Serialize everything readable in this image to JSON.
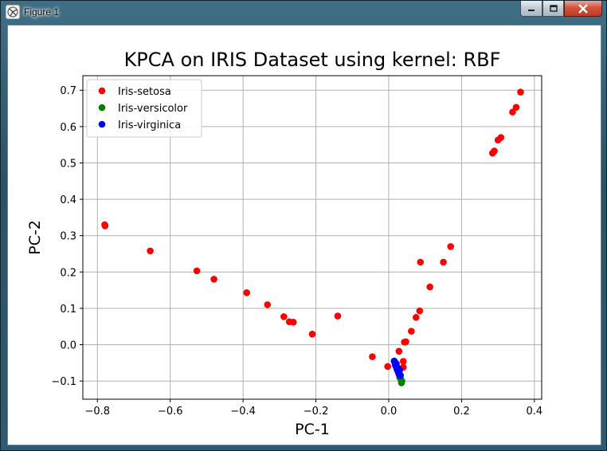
{
  "window": {
    "title": "Figure 1"
  },
  "chart_data": {
    "type": "scatter",
    "title": "KPCA on IRIS Dataset using kernel: RBF",
    "xlabel": "PC-1",
    "ylabel": "PC-2",
    "xlim": [
      -0.84,
      0.42
    ],
    "ylim": [
      -0.15,
      0.74
    ],
    "xticks": [
      -0.8,
      -0.6,
      -0.4,
      -0.2,
      0.0,
      0.2,
      0.4
    ],
    "xtick_labels": [
      "−0.8",
      "−0.6",
      "−0.4",
      "−0.2",
      "0.0",
      "0.2",
      "0.4"
    ],
    "yticks": [
      -0.1,
      0.0,
      0.1,
      0.2,
      0.3,
      0.4,
      0.5,
      0.6,
      0.7
    ],
    "ytick_labels": [
      "−0.1",
      "0.0",
      "0.1",
      "0.2",
      "0.3",
      "0.4",
      "0.5",
      "0.6",
      "0.7"
    ],
    "grid": true,
    "legend_position": "top-left",
    "series": [
      {
        "name": "Iris-setosa",
        "color": "#ff0000",
        "points": [
          [
            -0.78,
            0.33
          ],
          [
            -0.779,
            0.327
          ],
          [
            -0.655,
            0.258
          ],
          [
            -0.527,
            0.203
          ],
          [
            -0.48,
            0.18
          ],
          [
            -0.39,
            0.143
          ],
          [
            -0.333,
            0.11
          ],
          [
            -0.288,
            0.077
          ],
          [
            -0.273,
            0.063
          ],
          [
            -0.262,
            0.062
          ],
          [
            -0.21,
            0.029
          ],
          [
            -0.14,
            0.079
          ],
          [
            -0.045,
            -0.033
          ],
          [
            -0.003,
            -0.06
          ],
          [
            0.028,
            -0.018
          ],
          [
            0.04,
            -0.046
          ],
          [
            0.04,
            -0.062
          ],
          [
            0.043,
            0.007
          ],
          [
            0.047,
            0.008
          ],
          [
            0.062,
            0.037
          ],
          [
            0.075,
            0.075
          ],
          [
            0.085,
            0.093
          ],
          [
            0.087,
            0.227
          ],
          [
            0.113,
            0.159
          ],
          [
            0.15,
            0.227
          ],
          [
            0.17,
            0.27
          ],
          [
            0.285,
            0.527
          ],
          [
            0.29,
            0.533
          ],
          [
            0.3,
            0.563
          ],
          [
            0.308,
            0.57
          ],
          [
            0.34,
            0.64
          ],
          [
            0.35,
            0.653
          ],
          [
            0.362,
            0.695
          ]
        ]
      },
      {
        "name": "Iris-versicolor",
        "color": "#008000",
        "points": [
          [
            0.035,
            -0.105
          ],
          [
            0.032,
            -0.085
          ],
          [
            0.03,
            -0.09
          ],
          [
            0.028,
            -0.08
          ],
          [
            0.033,
            -0.095
          ],
          [
            0.036,
            -0.1
          ]
        ]
      },
      {
        "name": "Iris-virginica",
        "color": "#0000ff",
        "points": [
          [
            0.015,
            -0.045
          ],
          [
            0.017,
            -0.05
          ],
          [
            0.018,
            -0.055
          ],
          [
            0.02,
            -0.06
          ],
          [
            0.021,
            -0.052
          ],
          [
            0.022,
            -0.065
          ],
          [
            0.023,
            -0.068
          ],
          [
            0.024,
            -0.07
          ],
          [
            0.025,
            -0.072
          ],
          [
            0.026,
            -0.075
          ],
          [
            0.027,
            -0.077
          ],
          [
            0.028,
            -0.08
          ],
          [
            0.029,
            -0.082
          ],
          [
            0.03,
            -0.083
          ],
          [
            0.031,
            -0.085
          ],
          [
            0.032,
            -0.084
          ],
          [
            0.019,
            -0.058
          ],
          [
            0.023,
            -0.062
          ],
          [
            0.026,
            -0.066
          ],
          [
            0.03,
            -0.07
          ]
        ]
      }
    ]
  }
}
